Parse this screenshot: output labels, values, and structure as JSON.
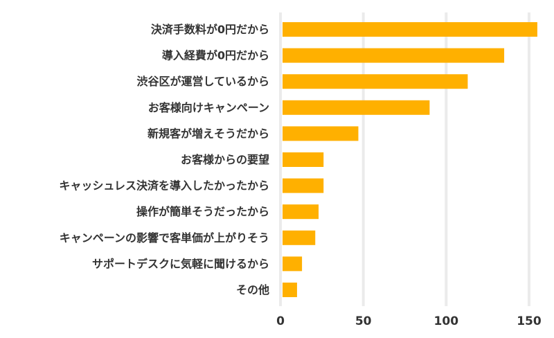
{
  "chart_data": {
    "type": "bar",
    "orientation": "horizontal",
    "categories": [
      "決済手数料が0円だから",
      "導入経費が0円だから",
      "渋谷区が運営しているから",
      "お客様向けキャンペーン",
      "新規客が増えそうだから",
      "お客様からの要望",
      "キャッシュレス決済を導入したかったから",
      "操作が簡単そうだったから",
      "キャンペーンの影響で客単価が上がりそう",
      "サポートデスクに気軽に聞けるから",
      "その他"
    ],
    "values": [
      155,
      135,
      113,
      90,
      47,
      26,
      26,
      23,
      21,
      13,
      10
    ],
    "xlim": [
      0,
      155
    ],
    "xticks": [
      0,
      50,
      100,
      150
    ],
    "xtick_labels": [
      "0",
      "50",
      "100",
      "150"
    ],
    "grid": true,
    "bar_color": "#ffb000",
    "grid_color": "#ebebeb"
  }
}
